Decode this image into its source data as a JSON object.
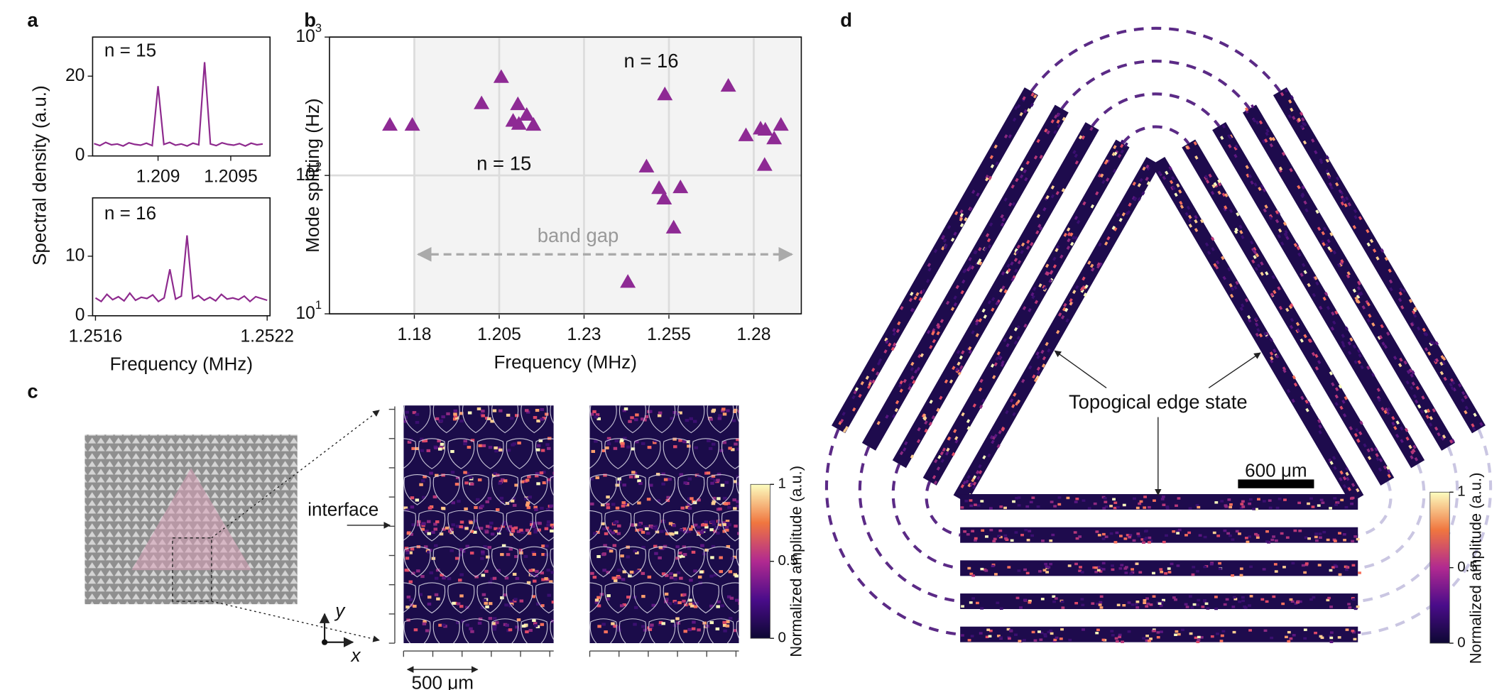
{
  "chart_data": [
    {
      "type": "line",
      "panel_label": "a",
      "annotation": "n = 15",
      "ylabel": "Spectral density (a.u.)",
      "color": "#8e2a8e",
      "x": [
        1.20856,
        1.2086,
        1.20864,
        1.20868,
        1.20872,
        1.20876,
        1.2088,
        1.20884,
        1.20888,
        1.20892,
        1.20896,
        1.209,
        1.20904,
        1.20908,
        1.20912,
        1.20916,
        1.2092,
        1.20924,
        1.20928,
        1.20932,
        1.20936,
        1.2094,
        1.20944,
        1.20948,
        1.20952,
        1.20956,
        1.2096,
        1.20964,
        1.20968,
        1.20972
      ],
      "values": [
        3.1,
        2.6,
        3.4,
        2.8,
        3.0,
        2.5,
        3.3,
        2.9,
        2.7,
        3.2,
        2.6,
        17.5,
        2.9,
        3.4,
        2.7,
        3.0,
        2.5,
        3.2,
        2.8,
        23.5,
        3.0,
        2.6,
        3.3,
        2.9,
        2.7,
        3.1,
        2.5,
        3.2,
        2.8,
        3.0
      ],
      "xlim": [
        1.20855,
        1.20977
      ],
      "ylim": [
        0,
        29.8
      ],
      "xticks": [
        1.209,
        1.2095
      ],
      "yticks": [
        0,
        20
      ]
    },
    {
      "type": "line",
      "annotation": "n = 16",
      "xlabel": "Frequency (MHz)",
      "color": "#8e2a8e",
      "x": [
        1.2516,
        1.25162,
        1.25164,
        1.25166,
        1.25168,
        1.2517,
        1.25172,
        1.25174,
        1.25176,
        1.25178,
        1.2518,
        1.25182,
        1.25184,
        1.25186,
        1.25188,
        1.2519,
        1.25192,
        1.25194,
        1.25196,
        1.25198,
        1.252,
        1.25202,
        1.25204,
        1.25206,
        1.25208,
        1.2521,
        1.25212,
        1.25214,
        1.25216,
        1.25218,
        1.2522
      ],
      "values": [
        3.0,
        2.4,
        3.6,
        2.7,
        3.2,
        2.5,
        3.8,
        2.6,
        3.1,
        2.9,
        3.5,
        2.4,
        3.0,
        7.8,
        2.8,
        3.3,
        13.5,
        2.9,
        3.4,
        2.6,
        3.1,
        2.5,
        3.6,
        2.8,
        3.0,
        2.7,
        3.3,
        2.4,
        3.2,
        2.9,
        2.6
      ],
      "xlim": [
        1.25159,
        1.25221
      ],
      "ylim": [
        0,
        19.8
      ],
      "xticks": [
        1.2516,
        1.2522
      ],
      "yticks": [
        0,
        10
      ]
    },
    {
      "type": "scatter",
      "panel_label": "b",
      "xlabel": "Frequency (MHz)",
      "ylabel": "Mode splitting (Hz)",
      "yscale": "log",
      "grid": true,
      "color": "#8e2a94",
      "annotations": [
        "n = 16",
        "n = 15",
        "band gap"
      ],
      "shaded_span": [
        1.18,
        1.2935
      ],
      "x": [
        1.1728,
        1.1794,
        1.1998,
        1.2056,
        1.2105,
        1.2091,
        1.2108,
        1.2131,
        1.2151,
        1.2484,
        1.2521,
        1.2536,
        1.2538,
        1.2564,
        1.2584,
        1.2429,
        1.2725,
        1.2777,
        1.282,
        1.2834,
        1.2832,
        1.286,
        1.288
      ],
      "values": [
        232,
        232,
        332,
        514,
        327,
        248,
        236,
        274,
        232,
        116,
        81,
        68,
        385,
        42,
        82,
        17,
        444,
        195,
        218,
        214,
        119,
        185,
        232
      ],
      "xlim": [
        1.155,
        1.294
      ],
      "ylim": [
        10,
        1000
      ],
      "xticks": [
        1.18,
        1.205,
        1.23,
        1.255,
        1.28
      ],
      "yticks": [
        {
          "value": 10,
          "label": "10^1"
        },
        {
          "value": 100,
          "label": "10^2"
        },
        {
          "value": 1000,
          "label": "10^3"
        }
      ]
    }
  ],
  "panel_c": {
    "label": "c",
    "interface": "interface",
    "scale_bar": "500 μm",
    "axis_x": "x",
    "axis_y": "y",
    "colorbar": {
      "label": "Normalized amplitude (a.u.)",
      "ticks": [
        0,
        0.5,
        1
      ]
    }
  },
  "panel_d": {
    "label": "d",
    "annotation": "Topogical edge state",
    "scale_bar": "600 μm",
    "colorbar": {
      "label": "Normalized amplitude (a.u.)",
      "ticks": [
        0,
        0.5,
        1
      ]
    }
  }
}
